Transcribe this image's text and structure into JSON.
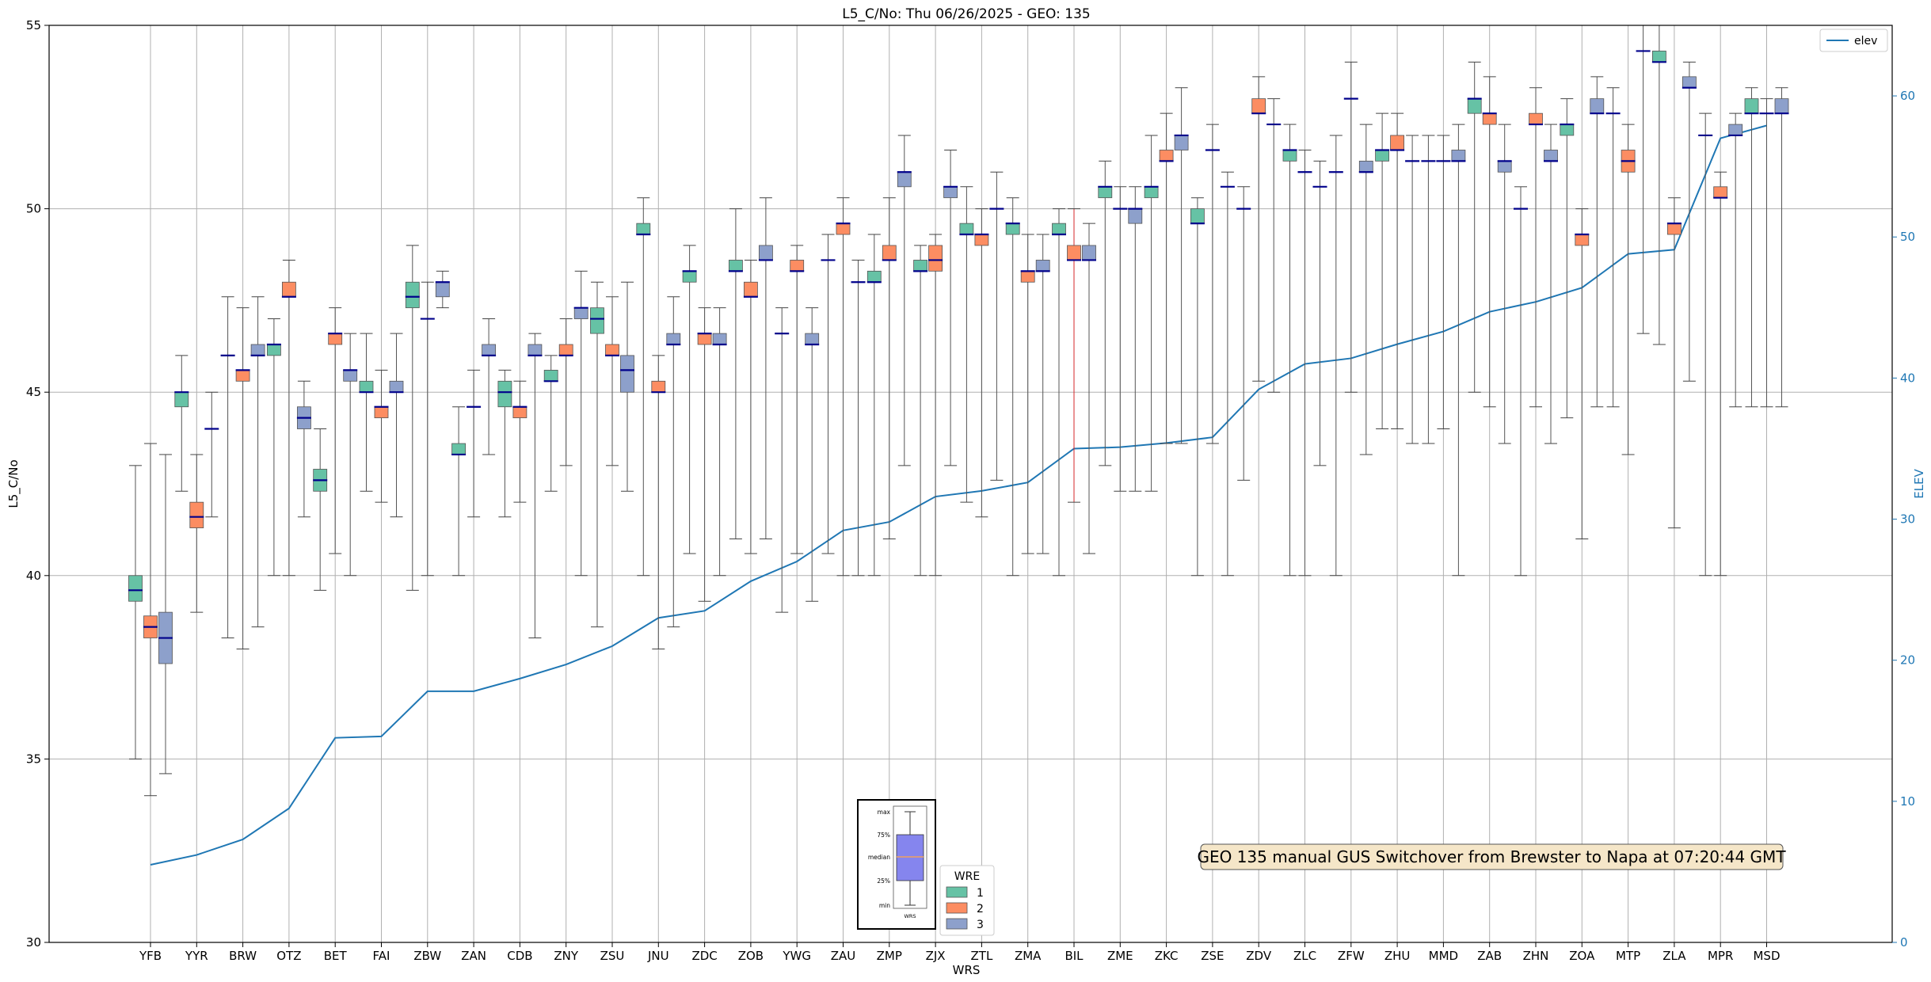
{
  "chart_data": {
    "type": "box",
    "title": "L5_C/No: Thu 06/26/2025 - GEO: 135",
    "xlabel": "WRS",
    "ylabel": "L5_C/No",
    "y2label": "ELEV",
    "ylim": [
      30,
      55
    ],
    "y2lim": [
      0,
      65
    ],
    "yticks": [
      30,
      35,
      40,
      45,
      50,
      55
    ],
    "y2ticks": [
      0,
      10,
      20,
      30,
      40,
      50,
      60
    ],
    "grid": true,
    "categories": [
      "YFB",
      "YYR",
      "BRW",
      "OTZ",
      "BET",
      "FAI",
      "ZBW",
      "ZAN",
      "CDB",
      "ZNY",
      "ZSU",
      "JNU",
      "ZDC",
      "ZOB",
      "YWG",
      "ZAU",
      "ZMP",
      "ZJX",
      "ZTL",
      "ZMA",
      "BIL",
      "ZME",
      "ZKC",
      "ZSE",
      "ZDV",
      "ZLC",
      "ZFW",
      "ZHU",
      "MMD",
      "ZAB",
      "ZHN",
      "ZOA",
      "MTP",
      "ZLA",
      "MPR",
      "MSD"
    ],
    "groups": [
      {
        "name": "1",
        "color": "#66c2a5"
      },
      {
        "name": "2",
        "color": "#fc8d62"
      },
      {
        "name": "3",
        "color": "#8da0cb"
      }
    ],
    "boxes": [
      {
        "cat": "YFB",
        "wre": 1,
        "min": 35.0,
        "q1": 39.3,
        "med": 39.6,
        "q3": 40.0,
        "max": 43.0
      },
      {
        "cat": "YFB",
        "wre": 2,
        "min": 34.0,
        "q1": 38.3,
        "med": 38.6,
        "q3": 38.9,
        "max": 43.6
      },
      {
        "cat": "YFB",
        "wre": 3,
        "min": 34.6,
        "q1": 37.6,
        "med": 38.3,
        "q3": 39.0,
        "max": 43.3
      },
      {
        "cat": "YYR",
        "wre": 1,
        "min": 42.3,
        "q1": 44.6,
        "med": 45.0,
        "q3": 45.0,
        "max": 46.0
      },
      {
        "cat": "YYR",
        "wre": 2,
        "min": 39.0,
        "q1": 41.3,
        "med": 41.6,
        "q3": 42.0,
        "max": 43.3
      },
      {
        "cat": "YYR",
        "wre": 3,
        "min": 41.6,
        "q1": 44.0,
        "med": 44.0,
        "q3": 44.0,
        "max": 45.0
      },
      {
        "cat": "BRW",
        "wre": 1,
        "min": 38.3,
        "q1": 46.0,
        "med": 46.0,
        "q3": 46.0,
        "max": 47.6
      },
      {
        "cat": "BRW",
        "wre": 2,
        "min": 38.0,
        "q1": 45.3,
        "med": 45.6,
        "q3": 45.6,
        "max": 47.3
      },
      {
        "cat": "BRW",
        "wre": 3,
        "min": 38.6,
        "q1": 46.0,
        "med": 46.0,
        "q3": 46.3,
        "max": 47.6
      },
      {
        "cat": "OTZ",
        "wre": 1,
        "min": 40.0,
        "q1": 46.0,
        "med": 46.3,
        "q3": 46.3,
        "max": 47.0
      },
      {
        "cat": "OTZ",
        "wre": 2,
        "min": 40.0,
        "q1": 47.6,
        "med": 47.6,
        "q3": 48.0,
        "max": 48.6
      },
      {
        "cat": "OTZ",
        "wre": 3,
        "min": 41.6,
        "q1": 44.0,
        "med": 44.3,
        "q3": 44.6,
        "max": 45.3
      },
      {
        "cat": "BET",
        "wre": 1,
        "min": 39.6,
        "q1": 42.3,
        "med": 42.6,
        "q3": 42.9,
        "max": 44.0
      },
      {
        "cat": "BET",
        "wre": 2,
        "min": 40.6,
        "q1": 46.3,
        "med": 46.6,
        "q3": 46.6,
        "max": 47.3
      },
      {
        "cat": "BET",
        "wre": 3,
        "min": 40.0,
        "q1": 45.3,
        "med": 45.6,
        "q3": 45.6,
        "max": 46.6
      },
      {
        "cat": "FAI",
        "wre": 1,
        "min": 42.3,
        "q1": 45.0,
        "med": 45.0,
        "q3": 45.3,
        "max": 46.6
      },
      {
        "cat": "FAI",
        "wre": 2,
        "min": 42.0,
        "q1": 44.3,
        "med": 44.6,
        "q3": 44.6,
        "max": 45.6
      },
      {
        "cat": "FAI",
        "wre": 3,
        "min": 41.6,
        "q1": 45.0,
        "med": 45.0,
        "q3": 45.3,
        "max": 46.6
      },
      {
        "cat": "ZBW",
        "wre": 1,
        "min": 39.6,
        "q1": 47.3,
        "med": 47.6,
        "q3": 48.0,
        "max": 49.0
      },
      {
        "cat": "ZBW",
        "wre": 2,
        "min": 40.0,
        "q1": 47.0,
        "med": 47.0,
        "q3": 47.0,
        "max": 48.0
      },
      {
        "cat": "ZBW",
        "wre": 3,
        "min": 47.3,
        "q1": 47.6,
        "med": 48.0,
        "q3": 48.0,
        "max": 48.3
      },
      {
        "cat": "ZAN",
        "wre": 1,
        "min": 40.0,
        "q1": 43.3,
        "med": 43.3,
        "q3": 43.6,
        "max": 44.6
      },
      {
        "cat": "ZAN",
        "wre": 2,
        "min": 41.6,
        "q1": 44.6,
        "med": 44.6,
        "q3": 44.6,
        "max": 45.6
      },
      {
        "cat": "ZAN",
        "wre": 3,
        "min": 43.3,
        "q1": 46.0,
        "med": 46.0,
        "q3": 46.3,
        "max": 47.0
      },
      {
        "cat": "CDB",
        "wre": 1,
        "min": 41.6,
        "q1": 44.6,
        "med": 45.0,
        "q3": 45.3,
        "max": 45.6
      },
      {
        "cat": "CDB",
        "wre": 2,
        "min": 42.0,
        "q1": 44.3,
        "med": 44.6,
        "q3": 44.6,
        "max": 45.3
      },
      {
        "cat": "CDB",
        "wre": 3,
        "min": 38.3,
        "q1": 46.0,
        "med": 46.0,
        "q3": 46.3,
        "max": 46.6
      },
      {
        "cat": "ZNY",
        "wre": 1,
        "min": 42.3,
        "q1": 45.3,
        "med": 45.3,
        "q3": 45.6,
        "max": 46.0
      },
      {
        "cat": "ZNY",
        "wre": 2,
        "min": 43.0,
        "q1": 46.0,
        "med": 46.0,
        "q3": 46.3,
        "max": 47.0
      },
      {
        "cat": "ZNY",
        "wre": 3,
        "min": 40.0,
        "q1": 47.0,
        "med": 47.3,
        "q3": 47.3,
        "max": 48.3
      },
      {
        "cat": "ZSU",
        "wre": 1,
        "min": 38.6,
        "q1": 46.6,
        "med": 47.0,
        "q3": 47.3,
        "max": 48.0
      },
      {
        "cat": "ZSU",
        "wre": 2,
        "min": 43.0,
        "q1": 46.0,
        "med": 46.0,
        "q3": 46.3,
        "max": 47.6
      },
      {
        "cat": "ZSU",
        "wre": 3,
        "min": 42.3,
        "q1": 45.0,
        "med": 45.6,
        "q3": 46.0,
        "max": 48.0
      },
      {
        "cat": "JNU",
        "wre": 1,
        "min": 40.0,
        "q1": 49.3,
        "med": 49.3,
        "q3": 49.6,
        "max": 50.3
      },
      {
        "cat": "JNU",
        "wre": 2,
        "min": 38.0,
        "q1": 45.0,
        "med": 45.0,
        "q3": 45.3,
        "max": 46.0
      },
      {
        "cat": "JNU",
        "wre": 3,
        "min": 38.6,
        "q1": 46.3,
        "med": 46.3,
        "q3": 46.6,
        "max": 47.6
      },
      {
        "cat": "ZDC",
        "wre": 1,
        "min": 40.6,
        "q1": 48.0,
        "med": 48.3,
        "q3": 48.3,
        "max": 49.0
      },
      {
        "cat": "ZDC",
        "wre": 2,
        "min": 39.3,
        "q1": 46.3,
        "med": 46.6,
        "q3": 46.6,
        "max": 47.3
      },
      {
        "cat": "ZDC",
        "wre": 3,
        "min": 40.0,
        "q1": 46.3,
        "med": 46.3,
        "q3": 46.6,
        "max": 47.3
      },
      {
        "cat": "ZOB",
        "wre": 1,
        "min": 41.0,
        "q1": 48.3,
        "med": 48.3,
        "q3": 48.6,
        "max": 50.0
      },
      {
        "cat": "ZOB",
        "wre": 2,
        "min": 40.6,
        "q1": 47.6,
        "med": 47.6,
        "q3": 48.0,
        "max": 48.6
      },
      {
        "cat": "ZOB",
        "wre": 3,
        "min": 41.0,
        "q1": 48.6,
        "med": 48.6,
        "q3": 49.0,
        "max": 50.3
      },
      {
        "cat": "YWG",
        "wre": 1,
        "min": 39.0,
        "q1": 46.6,
        "med": 46.6,
        "q3": 46.6,
        "max": 47.3
      },
      {
        "cat": "YWG",
        "wre": 2,
        "min": 40.6,
        "q1": 48.3,
        "med": 48.3,
        "q3": 48.6,
        "max": 49.0
      },
      {
        "cat": "YWG",
        "wre": 3,
        "min": 39.3,
        "q1": 46.3,
        "med": 46.3,
        "q3": 46.6,
        "max": 47.3
      },
      {
        "cat": "ZAU",
        "wre": 1,
        "min": 40.6,
        "q1": 48.6,
        "med": 48.6,
        "q3": 48.6,
        "max": 49.3
      },
      {
        "cat": "ZAU",
        "wre": 2,
        "min": 40.0,
        "q1": 49.3,
        "med": 49.6,
        "q3": 49.6,
        "max": 50.3
      },
      {
        "cat": "ZAU",
        "wre": 3,
        "min": 40.0,
        "q1": 48.0,
        "med": 48.0,
        "q3": 48.0,
        "max": 48.6
      },
      {
        "cat": "ZMP",
        "wre": 1,
        "min": 40.0,
        "q1": 48.0,
        "med": 48.0,
        "q3": 48.3,
        "max": 49.3
      },
      {
        "cat": "ZMP",
        "wre": 2,
        "min": 41.0,
        "q1": 48.6,
        "med": 48.6,
        "q3": 49.0,
        "max": 50.3
      },
      {
        "cat": "ZMP",
        "wre": 3,
        "min": 43.0,
        "q1": 50.6,
        "med": 51.0,
        "q3": 51.0,
        "max": 52.0
      },
      {
        "cat": "ZJX",
        "wre": 1,
        "min": 40.0,
        "q1": 48.3,
        "med": 48.3,
        "q3": 48.6,
        "max": 49.0
      },
      {
        "cat": "ZJX",
        "wre": 2,
        "min": 40.0,
        "q1": 48.3,
        "med": 48.6,
        "q3": 49.0,
        "max": 49.3
      },
      {
        "cat": "ZJX",
        "wre": 3,
        "min": 43.0,
        "q1": 50.3,
        "med": 50.6,
        "q3": 50.6,
        "max": 51.6
      },
      {
        "cat": "ZTL",
        "wre": 1,
        "min": 42.0,
        "q1": 49.3,
        "med": 49.3,
        "q3": 49.6,
        "max": 50.6
      },
      {
        "cat": "ZTL",
        "wre": 2,
        "min": 41.6,
        "q1": 49.0,
        "med": 49.3,
        "q3": 49.3,
        "max": 50.0
      },
      {
        "cat": "ZTL",
        "wre": 3,
        "min": 42.6,
        "q1": 50.0,
        "med": 50.0,
        "q3": 50.0,
        "max": 51.0
      },
      {
        "cat": "ZMA",
        "wre": 1,
        "min": 40.0,
        "q1": 49.3,
        "med": 49.6,
        "q3": 49.6,
        "max": 50.3
      },
      {
        "cat": "ZMA",
        "wre": 2,
        "min": 40.6,
        "q1": 48.0,
        "med": 48.3,
        "q3": 48.3,
        "max": 49.3
      },
      {
        "cat": "ZMA",
        "wre": 3,
        "min": 40.6,
        "q1": 48.3,
        "med": 48.3,
        "q3": 48.6,
        "max": 49.3
      },
      {
        "cat": "BIL",
        "wre": 1,
        "min": 40.0,
        "q1": 49.3,
        "med": 49.3,
        "q3": 49.6,
        "max": 50.0
      },
      {
        "cat": "BIL",
        "wre": 2,
        "min": 42.0,
        "q1": 48.6,
        "med": 48.6,
        "q3": 49.0,
        "max": 50.0
      },
      {
        "cat": "BIL",
        "wre": 3,
        "min": 40.6,
        "q1": 48.6,
        "med": 48.6,
        "q3": 49.0,
        "max": 49.6
      },
      {
        "cat": "ZME",
        "wre": 1,
        "min": 43.0,
        "q1": 50.3,
        "med": 50.6,
        "q3": 50.6,
        "max": 51.3
      },
      {
        "cat": "ZME",
        "wre": 2,
        "min": 42.3,
        "q1": 50.0,
        "med": 50.0,
        "q3": 50.0,
        "max": 50.6
      },
      {
        "cat": "ZME",
        "wre": 3,
        "min": 42.3,
        "q1": 49.6,
        "med": 50.0,
        "q3": 50.0,
        "max": 50.6
      },
      {
        "cat": "ZKC",
        "wre": 1,
        "min": 42.3,
        "q1": 50.3,
        "med": 50.6,
        "q3": 50.6,
        "max": 52.0
      },
      {
        "cat": "ZKC",
        "wre": 2,
        "min": 43.6,
        "q1": 51.3,
        "med": 51.3,
        "q3": 51.6,
        "max": 52.6
      },
      {
        "cat": "ZKC",
        "wre": 3,
        "min": 43.6,
        "q1": 51.6,
        "med": 52.0,
        "q3": 52.0,
        "max": 53.3
      },
      {
        "cat": "ZSE",
        "wre": 1,
        "min": 40.0,
        "q1": 49.6,
        "med": 49.6,
        "q3": 50.0,
        "max": 50.3
      },
      {
        "cat": "ZSE",
        "wre": 2,
        "min": 43.6,
        "q1": 51.6,
        "med": 51.6,
        "q3": 51.6,
        "max": 52.3
      },
      {
        "cat": "ZSE",
        "wre": 3,
        "min": 40.0,
        "q1": 50.6,
        "med": 50.6,
        "q3": 50.6,
        "max": 51.0
      },
      {
        "cat": "ZDV",
        "wre": 1,
        "min": 42.6,
        "q1": 50.0,
        "med": 50.0,
        "q3": 50.0,
        "max": 50.6
      },
      {
        "cat": "ZDV",
        "wre": 2,
        "min": 45.3,
        "q1": 52.6,
        "med": 52.6,
        "q3": 53.0,
        "max": 53.6
      },
      {
        "cat": "ZDV",
        "wre": 3,
        "min": 45.0,
        "q1": 52.3,
        "med": 52.3,
        "q3": 52.3,
        "max": 53.0
      },
      {
        "cat": "ZLC",
        "wre": 1,
        "min": 40.0,
        "q1": 51.3,
        "med": 51.6,
        "q3": 51.6,
        "max": 52.3
      },
      {
        "cat": "ZLC",
        "wre": 2,
        "min": 40.0,
        "q1": 51.0,
        "med": 51.0,
        "q3": 51.0,
        "max": 51.6
      },
      {
        "cat": "ZLC",
        "wre": 3,
        "min": 43.0,
        "q1": 50.6,
        "med": 50.6,
        "q3": 50.6,
        "max": 51.3
      },
      {
        "cat": "ZFW",
        "wre": 1,
        "min": 40.0,
        "q1": 51.0,
        "med": 51.0,
        "q3": 51.0,
        "max": 52.0
      },
      {
        "cat": "ZFW",
        "wre": 2,
        "min": 45.0,
        "q1": 53.0,
        "med": 53.0,
        "q3": 53.0,
        "max": 54.0
      },
      {
        "cat": "ZFW",
        "wre": 3,
        "min": 43.3,
        "q1": 51.0,
        "med": 51.0,
        "q3": 51.3,
        "max": 52.3
      },
      {
        "cat": "ZHU",
        "wre": 1,
        "min": 44.0,
        "q1": 51.3,
        "med": 51.6,
        "q3": 51.6,
        "max": 52.6
      },
      {
        "cat": "ZHU",
        "wre": 2,
        "min": 44.0,
        "q1": 51.6,
        "med": 51.6,
        "q3": 52.0,
        "max": 52.6
      },
      {
        "cat": "ZHU",
        "wre": 3,
        "min": 43.6,
        "q1": 51.3,
        "med": 51.3,
        "q3": 51.3,
        "max": 52.0
      },
      {
        "cat": "MMD",
        "wre": 1,
        "min": 43.6,
        "q1": 51.3,
        "med": 51.3,
        "q3": 51.3,
        "max": 52.0
      },
      {
        "cat": "MMD",
        "wre": 2,
        "min": 44.0,
        "q1": 51.3,
        "med": 51.3,
        "q3": 51.3,
        "max": 52.0
      },
      {
        "cat": "MMD",
        "wre": 3,
        "min": 40.0,
        "q1": 51.3,
        "med": 51.3,
        "q3": 51.6,
        "max": 52.3
      },
      {
        "cat": "ZAB",
        "wre": 1,
        "min": 45.0,
        "q1": 52.6,
        "med": 53.0,
        "q3": 53.0,
        "max": 54.0
      },
      {
        "cat": "ZAB",
        "wre": 2,
        "min": 44.6,
        "q1": 52.3,
        "med": 52.6,
        "q3": 52.6,
        "max": 53.6
      },
      {
        "cat": "ZAB",
        "wre": 3,
        "min": 43.6,
        "q1": 51.0,
        "med": 51.3,
        "q3": 51.3,
        "max": 52.3
      },
      {
        "cat": "ZHN",
        "wre": 1,
        "min": 40.0,
        "q1": 50.0,
        "med": 50.0,
        "q3": 50.0,
        "max": 50.6
      },
      {
        "cat": "ZHN",
        "wre": 2,
        "min": 44.6,
        "q1": 52.3,
        "med": 52.3,
        "q3": 52.6,
        "max": 53.3
      },
      {
        "cat": "ZHN",
        "wre": 3,
        "min": 43.6,
        "q1": 51.3,
        "med": 51.3,
        "q3": 51.6,
        "max": 52.3
      },
      {
        "cat": "ZOA",
        "wre": 1,
        "min": 44.3,
        "q1": 52.0,
        "med": 52.3,
        "q3": 52.3,
        "max": 53.0
      },
      {
        "cat": "ZOA",
        "wre": 2,
        "min": 41.0,
        "q1": 49.0,
        "med": 49.3,
        "q3": 49.3,
        "max": 50.0
      },
      {
        "cat": "ZOA",
        "wre": 3,
        "min": 44.6,
        "q1": 52.6,
        "med": 52.6,
        "q3": 53.0,
        "max": 53.6
      },
      {
        "cat": "MTP",
        "wre": 1,
        "min": 44.6,
        "q1": 52.6,
        "med": 52.6,
        "q3": 52.6,
        "max": 53.3
      },
      {
        "cat": "MTP",
        "wre": 2,
        "min": 43.3,
        "q1": 51.0,
        "med": 51.3,
        "q3": 51.6,
        "max": 52.3
      },
      {
        "cat": "MTP",
        "wre": 3,
        "min": 46.6,
        "q1": 54.3,
        "med": 54.3,
        "q3": 54.3,
        "max": 55.0
      },
      {
        "cat": "ZLA",
        "wre": 1,
        "min": 46.3,
        "q1": 54.0,
        "med": 54.0,
        "q3": 54.3,
        "max": 55.0
      },
      {
        "cat": "ZLA",
        "wre": 2,
        "min": 41.3,
        "q1": 49.3,
        "med": 49.6,
        "q3": 49.6,
        "max": 50.3
      },
      {
        "cat": "ZLA",
        "wre": 3,
        "min": 45.3,
        "q1": 53.3,
        "med": 53.3,
        "q3": 53.6,
        "max": 54.0
      },
      {
        "cat": "MPR",
        "wre": 1,
        "min": 40.0,
        "q1": 52.0,
        "med": 52.0,
        "q3": 52.0,
        "max": 52.6
      },
      {
        "cat": "MPR",
        "wre": 2,
        "min": 40.0,
        "q1": 50.3,
        "med": 50.3,
        "q3": 50.6,
        "max": 51.0
      },
      {
        "cat": "MPR",
        "wre": 3,
        "min": 44.6,
        "q1": 52.0,
        "med": 52.0,
        "q3": 52.3,
        "max": 52.6
      },
      {
        "cat": "MSD",
        "wre": 1,
        "min": 44.6,
        "q1": 52.6,
        "med": 52.6,
        "q3": 53.0,
        "max": 53.3
      },
      {
        "cat": "MSD",
        "wre": 2,
        "min": 44.6,
        "q1": 52.6,
        "med": 52.6,
        "q3": 52.6,
        "max": 53.0
      },
      {
        "cat": "MSD",
        "wre": 3,
        "min": 44.6,
        "q1": 52.6,
        "med": 52.6,
        "q3": 53.0,
        "max": 53.3
      }
    ],
    "highlight": {
      "cat": "BIL",
      "wre": 2,
      "whisker_color": "#d62728"
    },
    "elev_series": {
      "name": "elev",
      "color": "#1f77b4",
      "values": [
        5.5,
        6.2,
        7.3,
        9.5,
        14.5,
        14.6,
        17.8,
        17.8,
        18.7,
        19.7,
        21.0,
        23.0,
        23.5,
        25.6,
        27.0,
        29.2,
        29.8,
        31.6,
        32.0,
        32.6,
        35.0,
        35.1,
        35.4,
        35.8,
        39.2,
        41.0,
        41.4,
        42.4,
        43.3,
        44.7,
        45.4,
        46.4,
        48.8,
        49.1,
        57.0,
        57.9
      ]
    },
    "legend_elev": {
      "label": "elev",
      "position": "top-right"
    },
    "legend_wre": {
      "title": "WRE",
      "labels": [
        "1",
        "2",
        "3"
      ],
      "position": "bottom-center"
    },
    "inset_key": {
      "labels": [
        "max",
        "75%",
        "median",
        "25%",
        "min"
      ],
      "xlabel": "WRS"
    },
    "annotation": "GEO 135 manual GUS Switchover from Brewster to Napa at 07:20:44 GMT"
  }
}
